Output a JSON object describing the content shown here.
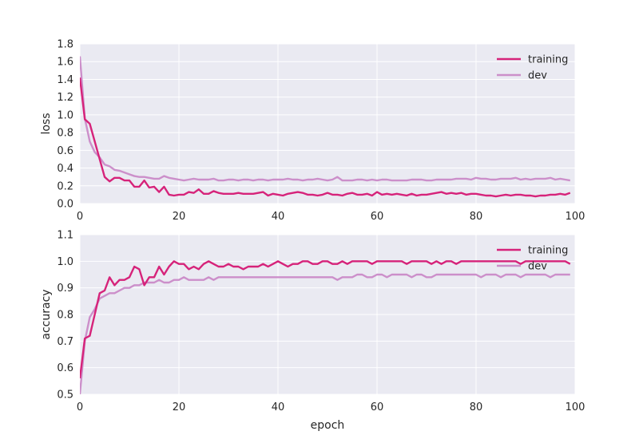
{
  "colors": {
    "training": "#d6237a",
    "dev": "#cc8fca",
    "panel_bg": "#eaeaf2",
    "grid": "#ffffff"
  },
  "chart_data": [
    {
      "type": "line",
      "title": "",
      "xlabel": "",
      "ylabel": "loss",
      "xlim": [
        0,
        100
      ],
      "ylim": [
        0.0,
        1.8
      ],
      "xticks": [
        0,
        20,
        40,
        60,
        80,
        100
      ],
      "yticks": [
        0.0,
        0.2,
        0.4,
        0.6,
        0.8,
        1.0,
        1.2,
        1.4,
        1.6,
        1.8
      ],
      "xtick_labels": [
        "0",
        "20",
        "40",
        "60",
        "80",
        "100"
      ],
      "ytick_labels": [
        "0.0",
        "0.2",
        "0.4",
        "0.6",
        "0.8",
        "1.0",
        "1.2",
        "1.4",
        "1.6",
        "1.8"
      ],
      "grid": true,
      "legend": "top-right",
      "x": [
        0,
        1,
        2,
        3,
        4,
        5,
        6,
        7,
        8,
        9,
        10,
        11,
        12,
        13,
        14,
        15,
        16,
        17,
        18,
        19,
        20,
        21,
        22,
        23,
        24,
        25,
        26,
        27,
        28,
        29,
        30,
        31,
        32,
        33,
        34,
        35,
        36,
        37,
        38,
        39,
        40,
        41,
        42,
        43,
        44,
        45,
        46,
        47,
        48,
        49,
        50,
        51,
        52,
        53,
        54,
        55,
        56,
        57,
        58,
        59,
        60,
        61,
        62,
        63,
        64,
        65,
        66,
        67,
        68,
        69,
        70,
        71,
        72,
        73,
        74,
        75,
        76,
        77,
        78,
        79,
        80,
        81,
        82,
        83,
        84,
        85,
        86,
        87,
        88,
        89,
        90,
        91,
        92,
        93,
        94,
        95,
        96,
        97,
        98,
        99
      ],
      "series": [
        {
          "name": "training",
          "values": [
            1.42,
            0.95,
            0.9,
            0.7,
            0.5,
            0.3,
            0.25,
            0.29,
            0.29,
            0.26,
            0.26,
            0.19,
            0.19,
            0.26,
            0.18,
            0.19,
            0.13,
            0.19,
            0.1,
            0.09,
            0.1,
            0.1,
            0.13,
            0.12,
            0.16,
            0.11,
            0.11,
            0.14,
            0.12,
            0.11,
            0.11,
            0.11,
            0.12,
            0.11,
            0.11,
            0.11,
            0.12,
            0.13,
            0.09,
            0.11,
            0.1,
            0.09,
            0.11,
            0.12,
            0.13,
            0.12,
            0.1,
            0.1,
            0.09,
            0.1,
            0.12,
            0.1,
            0.1,
            0.09,
            0.11,
            0.12,
            0.1,
            0.1,
            0.11,
            0.09,
            0.13,
            0.1,
            0.11,
            0.1,
            0.11,
            0.1,
            0.09,
            0.11,
            0.09,
            0.1,
            0.1,
            0.11,
            0.12,
            0.13,
            0.11,
            0.12,
            0.11,
            0.12,
            0.1,
            0.11,
            0.11,
            0.1,
            0.09,
            0.09,
            0.08,
            0.09,
            0.1,
            0.09,
            0.1,
            0.1,
            0.09,
            0.09,
            0.08,
            0.09,
            0.09,
            0.1,
            0.1,
            0.11,
            0.1,
            0.12
          ]
        },
        {
          "name": "dev",
          "values": [
            1.66,
            0.96,
            0.7,
            0.58,
            0.52,
            0.44,
            0.42,
            0.38,
            0.37,
            0.35,
            0.33,
            0.31,
            0.3,
            0.3,
            0.29,
            0.28,
            0.28,
            0.31,
            0.29,
            0.28,
            0.27,
            0.26,
            0.27,
            0.28,
            0.27,
            0.27,
            0.27,
            0.28,
            0.26,
            0.26,
            0.27,
            0.27,
            0.26,
            0.27,
            0.27,
            0.26,
            0.27,
            0.27,
            0.26,
            0.27,
            0.27,
            0.27,
            0.28,
            0.27,
            0.27,
            0.26,
            0.27,
            0.27,
            0.28,
            0.27,
            0.26,
            0.27,
            0.3,
            0.26,
            0.26,
            0.26,
            0.27,
            0.27,
            0.26,
            0.27,
            0.26,
            0.27,
            0.27,
            0.26,
            0.26,
            0.26,
            0.26,
            0.27,
            0.27,
            0.27,
            0.26,
            0.26,
            0.27,
            0.27,
            0.27,
            0.27,
            0.28,
            0.28,
            0.28,
            0.27,
            0.29,
            0.28,
            0.28,
            0.27,
            0.27,
            0.28,
            0.28,
            0.28,
            0.29,
            0.27,
            0.28,
            0.27,
            0.28,
            0.28,
            0.28,
            0.29,
            0.27,
            0.28,
            0.27,
            0.26
          ]
        }
      ]
    },
    {
      "type": "line",
      "title": "",
      "xlabel": "epoch",
      "ylabel": "accuracy",
      "xlim": [
        0,
        100
      ],
      "ylim": [
        0.5,
        1.1
      ],
      "xticks": [
        0,
        20,
        40,
        60,
        80,
        100
      ],
      "yticks": [
        0.5,
        0.6,
        0.7,
        0.8,
        0.9,
        1.0,
        1.1
      ],
      "xtick_labels": [
        "0",
        "20",
        "40",
        "60",
        "80",
        "100"
      ],
      "ytick_labels": [
        "0.5",
        "0.6",
        "0.7",
        "0.8",
        "0.9",
        "1.0",
        "1.1"
      ],
      "grid": true,
      "legend": "top-right",
      "x": [
        0,
        1,
        2,
        3,
        4,
        5,
        6,
        7,
        8,
        9,
        10,
        11,
        12,
        13,
        14,
        15,
        16,
        17,
        18,
        19,
        20,
        21,
        22,
        23,
        24,
        25,
        26,
        27,
        28,
        29,
        30,
        31,
        32,
        33,
        34,
        35,
        36,
        37,
        38,
        39,
        40,
        41,
        42,
        43,
        44,
        45,
        46,
        47,
        48,
        49,
        50,
        51,
        52,
        53,
        54,
        55,
        56,
        57,
        58,
        59,
        60,
        61,
        62,
        63,
        64,
        65,
        66,
        67,
        68,
        69,
        70,
        71,
        72,
        73,
        74,
        75,
        76,
        77,
        78,
        79,
        80,
        81,
        82,
        83,
        84,
        85,
        86,
        87,
        88,
        89,
        90,
        91,
        92,
        93,
        94,
        95,
        96,
        97,
        98,
        99
      ],
      "series": [
        {
          "name": "training",
          "values": [
            0.56,
            0.71,
            0.72,
            0.8,
            0.88,
            0.89,
            0.94,
            0.91,
            0.93,
            0.93,
            0.94,
            0.98,
            0.97,
            0.91,
            0.94,
            0.94,
            0.98,
            0.95,
            0.98,
            1.0,
            0.99,
            0.99,
            0.97,
            0.98,
            0.97,
            0.99,
            1.0,
            0.99,
            0.98,
            0.98,
            0.99,
            0.98,
            0.98,
            0.97,
            0.98,
            0.98,
            0.98,
            0.99,
            0.98,
            0.99,
            1.0,
            0.99,
            0.98,
            0.99,
            0.99,
            1.0,
            1.0,
            0.99,
            0.99,
            1.0,
            1.0,
            0.99,
            0.99,
            1.0,
            0.99,
            1.0,
            1.0,
            1.0,
            1.0,
            0.99,
            1.0,
            1.0,
            1.0,
            1.0,
            1.0,
            1.0,
            0.99,
            1.0,
            1.0,
            1.0,
            1.0,
            0.99,
            1.0,
            0.99,
            1.0,
            1.0,
            0.99,
            1.0,
            1.0,
            1.0,
            1.0,
            1.0,
            1.0,
            1.0,
            1.0,
            1.0,
            1.0,
            1.0,
            1.0,
            0.99,
            1.0,
            1.0,
            1.0,
            1.0,
            1.0,
            1.0,
            1.0,
            1.0,
            1.0,
            0.99
          ]
        },
        {
          "name": "dev",
          "values": [
            0.5,
            0.7,
            0.79,
            0.82,
            0.86,
            0.87,
            0.88,
            0.88,
            0.89,
            0.9,
            0.9,
            0.91,
            0.91,
            0.92,
            0.92,
            0.92,
            0.93,
            0.92,
            0.92,
            0.93,
            0.93,
            0.94,
            0.93,
            0.93,
            0.93,
            0.93,
            0.94,
            0.93,
            0.94,
            0.94,
            0.94,
            0.94,
            0.94,
            0.94,
            0.94,
            0.94,
            0.94,
            0.94,
            0.94,
            0.94,
            0.94,
            0.94,
            0.94,
            0.94,
            0.94,
            0.94,
            0.94,
            0.94,
            0.94,
            0.94,
            0.94,
            0.94,
            0.93,
            0.94,
            0.94,
            0.94,
            0.95,
            0.95,
            0.94,
            0.94,
            0.95,
            0.95,
            0.94,
            0.95,
            0.95,
            0.95,
            0.95,
            0.94,
            0.95,
            0.95,
            0.94,
            0.94,
            0.95,
            0.95,
            0.95,
            0.95,
            0.95,
            0.95,
            0.95,
            0.95,
            0.95,
            0.94,
            0.95,
            0.95,
            0.95,
            0.94,
            0.95,
            0.95,
            0.95,
            0.94,
            0.95,
            0.95,
            0.95,
            0.95,
            0.95,
            0.94,
            0.95,
            0.95,
            0.95,
            0.95
          ]
        }
      ]
    }
  ]
}
